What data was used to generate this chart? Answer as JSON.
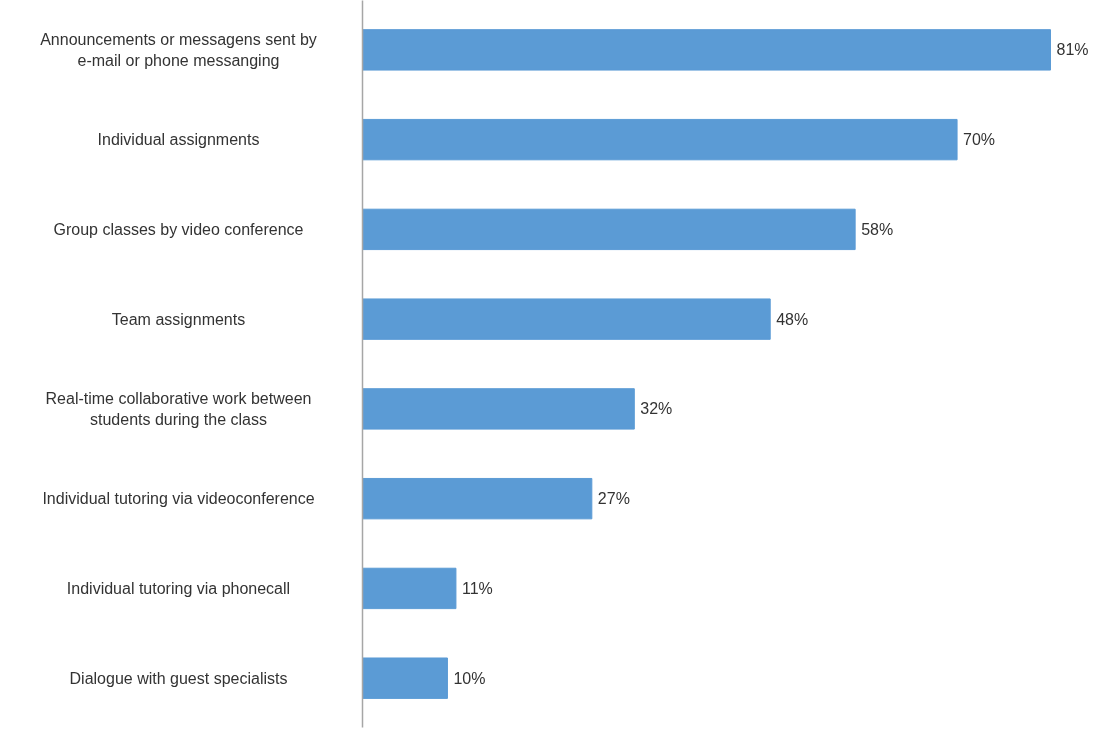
{
  "chart_data": {
    "type": "bar",
    "orientation": "horizontal",
    "categories": [
      "Announcements or messagens sent by e-mail or phone messanging",
      "Individual assignments",
      "Group classes by video conference",
      "Team assignments",
      "Real-time collaborative work between students during the class",
      "Individual tutoring via videoconference",
      "Individual tutoring via phonecall",
      "Dialogue with guest specialists"
    ],
    "values": [
      81,
      70,
      58,
      48,
      32,
      27,
      11,
      10
    ],
    "value_labels": [
      "81%",
      "70%",
      "58%",
      "48%",
      "32%",
      "27%",
      "11%",
      "10%"
    ],
    "color": "#5b9bd5",
    "grid": false
  }
}
